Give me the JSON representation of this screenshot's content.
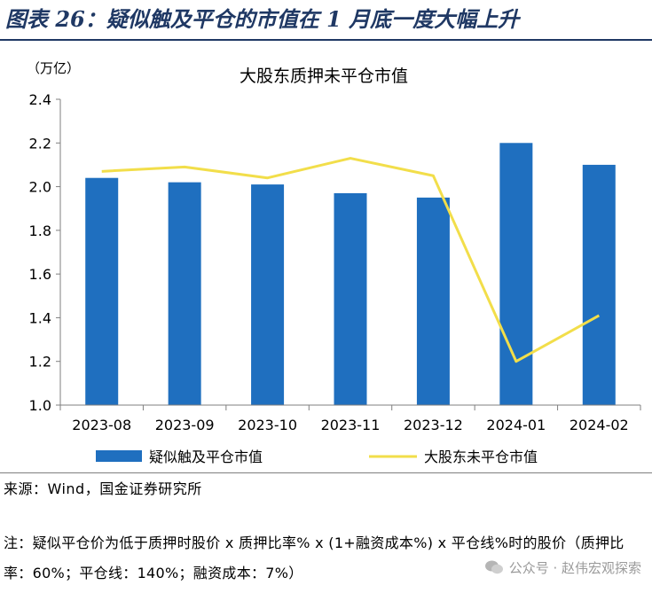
{
  "figure": {
    "title": "图表 26：疑似触及平仓的市值在 1 月底一度大幅上升"
  },
  "chart_data": {
    "type": "bar",
    "title": "大股东质押未平仓市值",
    "unit_label": "（万亿）",
    "categories": [
      "2023-08",
      "2023-09",
      "2023-10",
      "2023-11",
      "2023-12",
      "2024-01",
      "2024-02"
    ],
    "y_ticks": [
      "1.0",
      "1.2",
      "1.4",
      "1.6",
      "1.8",
      "2.0",
      "2.2",
      "2.4"
    ],
    "ylim": [
      1.0,
      2.4
    ],
    "series": [
      {
        "name": "疑似触及平仓市值",
        "type": "bar",
        "color": "#1f6fbf",
        "values": [
          2.04,
          2.02,
          2.01,
          1.97,
          1.95,
          2.2,
          2.1
        ]
      },
      {
        "name": "大股东未平仓市值",
        "type": "line",
        "color": "#f2de4a",
        "values": [
          2.07,
          2.09,
          2.04,
          2.13,
          2.05,
          1.2,
          1.41
        ]
      }
    ],
    "legend_position": "bottom"
  },
  "source": "来源：Wind，国金证券研究所",
  "note": "注：疑似平仓价为低于质押时股价 x 质押比率% x (1+融资成本%) x 平仓线%时的股价（质押比率：60%；平仓线：140%；融资成本：7%）",
  "watermark": {
    "icon": "wechat-icon",
    "text": "公众号 · 赵伟宏观探索"
  }
}
